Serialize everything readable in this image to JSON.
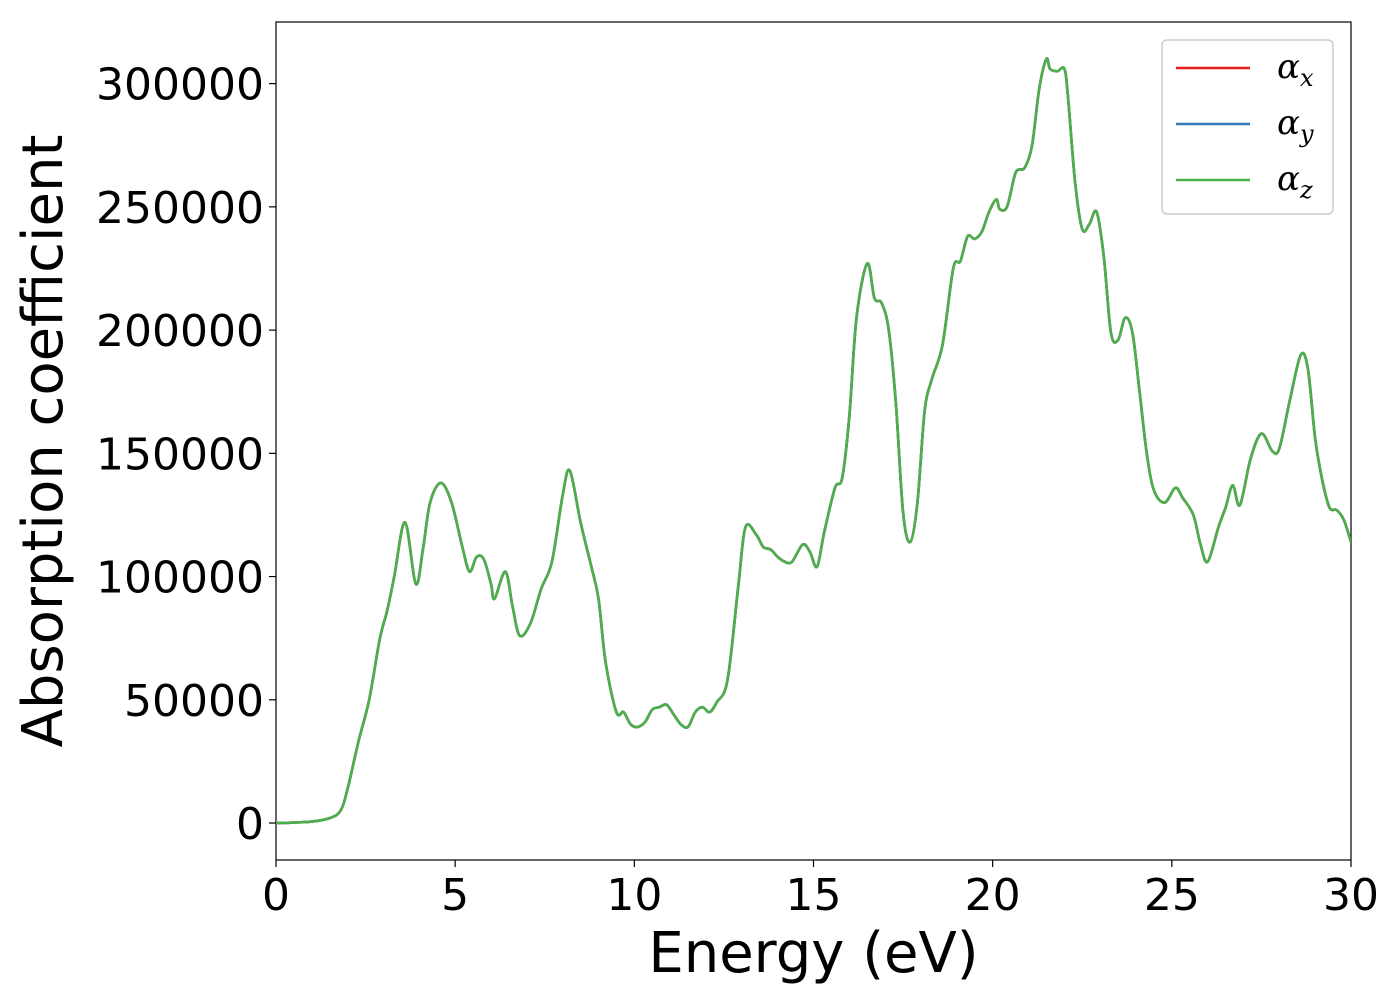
{
  "chart_data": {
    "type": "line",
    "title": "",
    "xlabel": "Energy (eV)",
    "ylabel": "Absorption coefficient",
    "xlim": [
      0,
      30
    ],
    "ylim": [
      -15000,
      325000
    ],
    "xticks": [
      0,
      5,
      10,
      15,
      20,
      25,
      30
    ],
    "yticks": [
      0,
      50000,
      100000,
      150000,
      200000,
      250000,
      300000
    ],
    "grid": false,
    "legend_position": "top-right",
    "series": [
      {
        "name": "αx",
        "symbol": "α",
        "subscript": "x",
        "color": "#e41a1c"
      },
      {
        "name": "αy",
        "symbol": "α",
        "subscript": "y",
        "color": "#377eb8"
      },
      {
        "name": "αz",
        "symbol": "α",
        "subscript": "z",
        "color": "#4daf4a"
      }
    ],
    "x": [
      0,
      0.5,
      1.0,
      1.5,
      1.8,
      2.0,
      2.3,
      2.6,
      2.9,
      3.1,
      3.3,
      3.6,
      3.9,
      4.1,
      4.3,
      4.6,
      4.9,
      5.2,
      5.4,
      5.6,
      5.8,
      6.0,
      6.1,
      6.4,
      6.6,
      6.8,
      7.1,
      7.4,
      7.7,
      8.0,
      8.2,
      8.5,
      8.8,
      9.0,
      9.2,
      9.5,
      9.7,
      9.9,
      10.1,
      10.3,
      10.5,
      10.7,
      10.9,
      11.1,
      11.3,
      11.5,
      11.7,
      11.9,
      12.1,
      12.3,
      12.6,
      12.9,
      13.1,
      13.4,
      13.6,
      13.8,
      14.0,
      14.2,
      14.4,
      14.7,
      14.9,
      15.1,
      15.3,
      15.6,
      15.8,
      16.0,
      16.2,
      16.5,
      16.7,
      16.9,
      17.1,
      17.3,
      17.5,
      17.7,
      17.9,
      18.1,
      18.3,
      18.6,
      18.9,
      19.1,
      19.3,
      19.5,
      19.7,
      19.9,
      20.1,
      20.2,
      20.4,
      20.6,
      20.7,
      20.9,
      21.1,
      21.3,
      21.5,
      21.6,
      21.8,
      22.0,
      22.1,
      22.3,
      22.5,
      22.7,
      22.9,
      23.1,
      23.3,
      23.5,
      23.7,
      23.9,
      24.1,
      24.3,
      24.5,
      24.8,
      25.1,
      25.3,
      25.6,
      25.8,
      26.0,
      26.3,
      26.5,
      26.7,
      26.9,
      27.2,
      27.5,
      27.8,
      28.0,
      28.3,
      28.6,
      28.8,
      29.0,
      29.2,
      29.4,
      29.6,
      29.8,
      30.0
    ],
    "y": [
      0,
      200,
      600,
      2000,
      5000,
      14000,
      33000,
      50000,
      75000,
      86000,
      100000,
      122000,
      97000,
      111000,
      130000,
      138000,
      130000,
      112000,
      102000,
      108000,
      107000,
      97000,
      91000,
      102000,
      88000,
      76000,
      81000,
      95000,
      106000,
      133000,
      143000,
      122000,
      104000,
      91000,
      65000,
      45000,
      45000,
      40000,
      39000,
      41000,
      46000,
      47000,
      48000,
      44000,
      40000,
      39000,
      45000,
      47000,
      45000,
      49000,
      58000,
      96000,
      120000,
      117000,
      112000,
      111000,
      108000,
      106000,
      106000,
      113000,
      110000,
      104000,
      118000,
      136000,
      140000,
      165000,
      205000,
      227000,
      213000,
      211000,
      200000,
      170000,
      126000,
      114000,
      130000,
      167000,
      180000,
      194000,
      225000,
      228000,
      238000,
      237000,
      240000,
      248000,
      253000,
      249000,
      250000,
      262000,
      265000,
      266000,
      275000,
      298000,
      310000,
      306000,
      305000,
      306000,
      295000,
      260000,
      241000,
      243000,
      248000,
      230000,
      199000,
      196000,
      205000,
      199000,
      175000,
      150000,
      135000,
      130000,
      136000,
      132000,
      125000,
      113000,
      106000,
      120000,
      128000,
      137000,
      129000,
      148000,
      158000,
      151000,
      152000,
      172000,
      190000,
      184000,
      156000,
      139000,
      128000,
      127000,
      123000,
      114000
    ]
  }
}
